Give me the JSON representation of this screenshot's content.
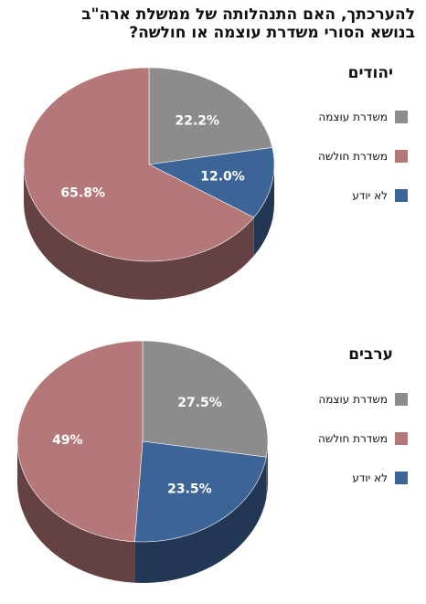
{
  "title": {
    "line1": "להערכתך,  האם התנהלותה של ממשלת ארה\"ב",
    "line2": "בנושא הסורי משדרת עוצמה או חולשה?"
  },
  "chart_data": [
    {
      "type": "pie",
      "title": "יהודים",
      "slices": [
        {
          "label": "משדרת עוצמה",
          "value": 22.2,
          "display": "22.2%",
          "color": "#8c8c8c"
        },
        {
          "label": "לא יודע",
          "value": 12.0,
          "display": "12.0%",
          "color": "#3d6496"
        },
        {
          "label": "משדרת חולשה",
          "value": 65.8,
          "display": "65.8%",
          "color": "#b57879"
        }
      ],
      "legend_order": [
        "משדרת עוצמה",
        "משדרת חולשה",
        "לא יודע"
      ],
      "legend_position": "right"
    },
    {
      "type": "pie",
      "title": "ערבים",
      "slices": [
        {
          "label": "משדרת עוצמה",
          "value": 27.5,
          "display": "27.5%",
          "color": "#8c8c8c"
        },
        {
          "label": "לא יודע",
          "value": 23.5,
          "display": "23.5%",
          "color": "#3d6496"
        },
        {
          "label": "משדרת חולשה",
          "value": 49,
          "display": "49%",
          "color": "#b57879"
        }
      ],
      "legend_order": [
        "משדרת עוצמה",
        "משדרת חולשה",
        "לא יודע"
      ],
      "legend_position": "right"
    }
  ]
}
